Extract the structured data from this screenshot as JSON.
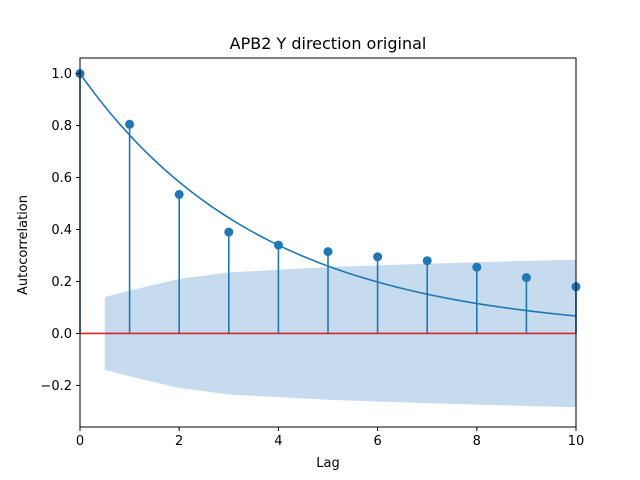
{
  "chart_data": {
    "type": "stem",
    "title": "APB2 Y direction original",
    "xlabel": "Lag",
    "ylabel": "Autocorrelation",
    "xlim": [
      0,
      10
    ],
    "ylim": [
      -0.36,
      1.06
    ],
    "xticks": [
      0,
      2,
      4,
      6,
      8,
      10
    ],
    "yticks": [
      -0.2,
      0.0,
      0.2,
      0.4,
      0.6,
      0.8,
      1.0
    ],
    "xtick_labels": [
      "0",
      "2",
      "4",
      "6",
      "8",
      "10"
    ],
    "ytick_labels": [
      "−0.2",
      "0.0",
      "0.2",
      "0.4",
      "0.6",
      "0.8",
      "1.0"
    ],
    "grid": false,
    "lags": [
      0,
      1,
      2,
      3,
      4,
      5,
      6,
      7,
      8,
      9,
      10
    ],
    "acf": [
      1.0,
      0.805,
      0.535,
      0.39,
      0.34,
      0.315,
      0.295,
      0.28,
      0.255,
      0.215,
      0.18
    ],
    "fitted_curve": {
      "function": "exp",
      "decay_rate": 0.27
    },
    "confidence_band": {
      "lags": [
        0.5,
        1,
        2,
        3,
        4,
        5,
        6,
        7,
        8,
        9,
        10
      ],
      "upper": [
        0.14,
        0.165,
        0.21,
        0.235,
        0.245,
        0.255,
        0.262,
        0.268,
        0.274,
        0.279,
        0.284
      ]
    },
    "zero_line": 0.0,
    "colors": {
      "stem": "#1f77b4",
      "band": "#c6dbed",
      "zero_line": "#d62728"
    }
  }
}
